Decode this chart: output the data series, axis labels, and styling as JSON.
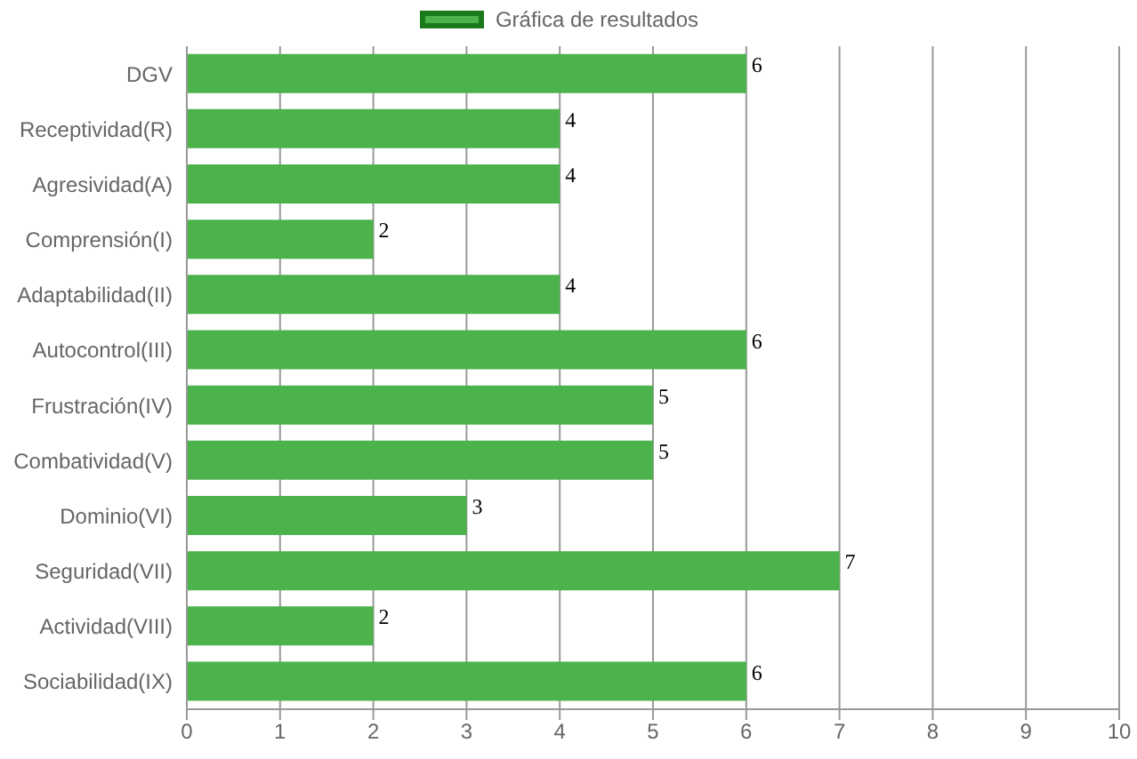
{
  "chart_data": {
    "type": "bar",
    "orientation": "horizontal",
    "categories": [
      "DGV",
      "Receptividad(R)",
      "Agresividad(A)",
      "Comprensión(I)",
      "Adaptabilidad(II)",
      "Autocontrol(III)",
      "Frustración(IV)",
      "Combatividad(V)",
      "Dominio(VI)",
      "Seguridad(VII)",
      "Actividad(VIII)",
      "Sociabilidad(IX)"
    ],
    "series": [
      {
        "name": "Gráfica de resultados",
        "color": "#4cb34c",
        "values": [
          6,
          4,
          4,
          2,
          4,
          6,
          5,
          5,
          3,
          7,
          2,
          6
        ]
      }
    ],
    "xlim": [
      0,
      10
    ],
    "xticks": [
      0,
      1,
      2,
      3,
      4,
      5,
      6,
      7,
      8,
      9,
      10
    ],
    "grid": "x",
    "legend": "top",
    "data_labels": true
  }
}
